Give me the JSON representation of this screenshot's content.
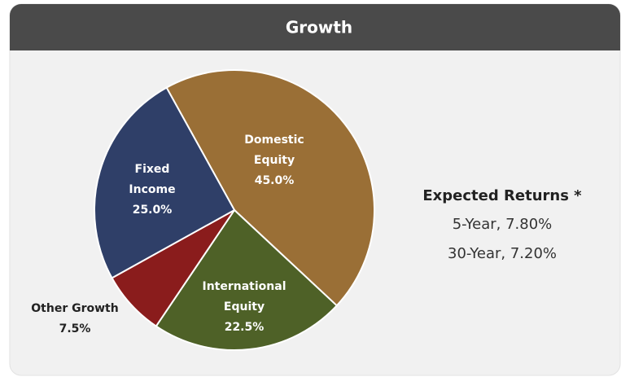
{
  "chart_data": {
    "type": "pie",
    "title": "Growth",
    "categories": [
      "Domestic Equity",
      "International Equity",
      "Other Growth",
      "Fixed Income"
    ],
    "values": [
      45.0,
      22.5,
      7.5,
      25.0
    ],
    "value_labels": [
      "45.0%",
      "22.5%",
      "7.5%",
      "25.0%"
    ],
    "colors": [
      "#9a6f36",
      "#4e6127",
      "#8a1c1c",
      "#2f3f68"
    ],
    "annotation": {
      "title": "Expected Returns *",
      "lines": [
        "5-Year, 7.80%",
        "30-Year, 7.20%"
      ]
    }
  }
}
